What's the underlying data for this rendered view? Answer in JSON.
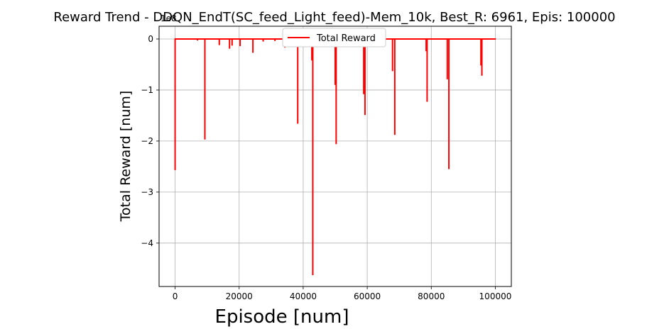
{
  "chart_data": {
    "type": "line",
    "title": "Reward Trend - DDQN_EndT(SC_feed_Light_feed)-Mem_10k, Best_R: 6961, Epis: 100000",
    "xlabel": "Episode [num]",
    "ylabel": "Total Reward [num]",
    "y_scale_note": "1e8",
    "xlim": [
      -5000,
      105000
    ],
    "ylim": [
      -4.85,
      0.25
    ],
    "x_ticks": [
      0,
      20000,
      40000,
      60000,
      80000,
      100000
    ],
    "x_tick_labels": [
      "0",
      "20000",
      "40000",
      "60000",
      "80000",
      "100000"
    ],
    "y_ticks": [
      0,
      -1,
      -2,
      -3,
      -4
    ],
    "y_tick_labels": [
      "0",
      "−1",
      "−2",
      "−3",
      "−4"
    ],
    "grid": true,
    "legend": {
      "placement": "upper center",
      "entries": [
        "Total Reward"
      ]
    },
    "series": [
      {
        "name": "Total Reward",
        "color": "#ff0000",
        "baseline": 0,
        "x_range": [
          0,
          100000
        ],
        "spikes": [
          {
            "x": 0,
            "y": -2.57
          },
          {
            "x": 7000,
            "y": -0.03
          },
          {
            "x": 9300,
            "y": -1.97
          },
          {
            "x": 13800,
            "y": -0.12
          },
          {
            "x": 17000,
            "y": -0.19
          },
          {
            "x": 17800,
            "y": -0.13
          },
          {
            "x": 20300,
            "y": -0.14
          },
          {
            "x": 24300,
            "y": -0.27
          },
          {
            "x": 27500,
            "y": -0.05
          },
          {
            "x": 31200,
            "y": -0.04
          },
          {
            "x": 34300,
            "y": -0.17
          },
          {
            "x": 38300,
            "y": -1.66
          },
          {
            "x": 42700,
            "y": -0.42
          },
          {
            "x": 43000,
            "y": -4.63
          },
          {
            "x": 50000,
            "y": -0.9
          },
          {
            "x": 50300,
            "y": -2.06
          },
          {
            "x": 58900,
            "y": -1.08
          },
          {
            "x": 59300,
            "y": -1.49
          },
          {
            "x": 67900,
            "y": -0.63
          },
          {
            "x": 68600,
            "y": -1.88
          },
          {
            "x": 78400,
            "y": -0.24
          },
          {
            "x": 78700,
            "y": -1.23
          },
          {
            "x": 85000,
            "y": -0.79
          },
          {
            "x": 85500,
            "y": -2.55
          },
          {
            "x": 95500,
            "y": -0.52
          },
          {
            "x": 95800,
            "y": -0.72
          }
        ]
      }
    ]
  }
}
